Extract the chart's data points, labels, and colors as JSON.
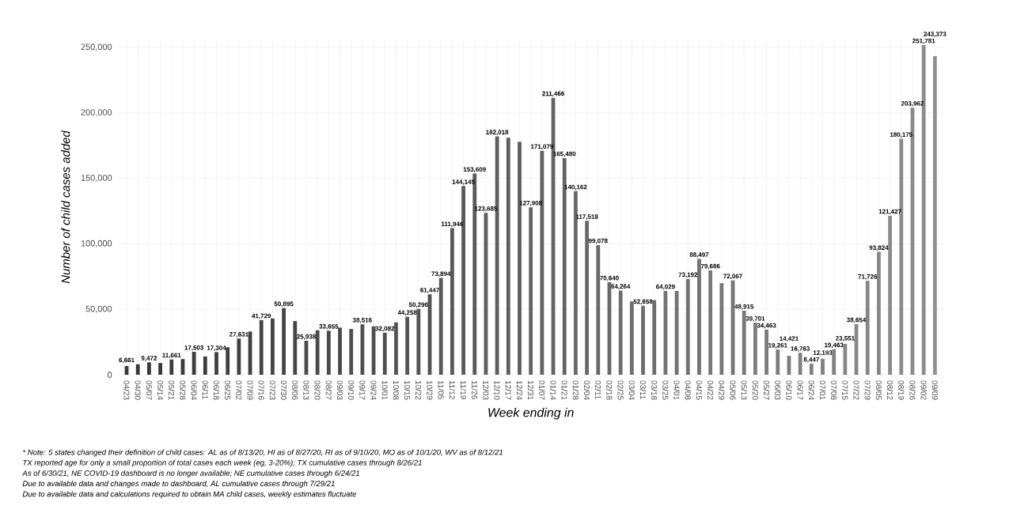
{
  "chart_data": {
    "type": "bar",
    "xlabel": "Week ending in",
    "ylabel": "Number of child cases added",
    "categories": [
      "04/23",
      "04/30",
      "05/07",
      "05/14",
      "05/21",
      "05/28",
      "06/04",
      "06/11",
      "06/18",
      "06/25",
      "07/02",
      "07/09",
      "07/16",
      "07/23",
      "07/30",
      "08/06",
      "08/13",
      "08/20",
      "08/27",
      "09/03",
      "09/10",
      "09/17",
      "09/24",
      "10/01",
      "10/08",
      "10/15",
      "10/22",
      "10/29",
      "11/05",
      "11/12",
      "11/19",
      "11/26",
      "12/03",
      "12/10",
      "12/17",
      "12/24",
      "12/31",
      "01/07",
      "01/14",
      "01/21",
      "01/28",
      "02/04",
      "02/11",
      "02/18",
      "02/25",
      "03/04",
      "03/11",
      "03/18",
      "03/25",
      "04/01",
      "04/08",
      "04/15",
      "04/22",
      "04/29",
      "05/06",
      "05/13",
      "05/20",
      "05/27",
      "06/03",
      "06/10",
      "06/17",
      "06/24",
      "07/01",
      "07/08",
      "07/15",
      "07/22",
      "07/29",
      "08/05",
      "08/12",
      "08/19",
      "08/26",
      "09/02",
      "09/09"
    ],
    "values": [
      6661,
      8000,
      9472,
      9000,
      11661,
      12000,
      17503,
      14000,
      17304,
      21000,
      27631,
      33000,
      41729,
      43000,
      50895,
      41000,
      25938,
      34000,
      33655,
      36000,
      35000,
      38516,
      37000,
      32082,
      40000,
      44258,
      50296,
      61447,
      73894,
      111946,
      144145,
      153609,
      123685,
      182018,
      181000,
      178000,
      127908,
      171079,
      211466,
      165480,
      140162,
      117518,
      99078,
      70640,
      64264,
      56000,
      52658,
      57000,
      64029,
      64000,
      73192,
      88497,
      79686,
      70000,
      72067,
      48915,
      39701,
      34463,
      19261,
      14421,
      16763,
      8447,
      12193,
      19463,
      23551,
      38654,
      71726,
      93824,
      121427,
      180175,
      203962,
      251781,
      243373
    ],
    "value_labels": [
      "6,661",
      null,
      "9,472",
      null,
      "11,661",
      null,
      "17,503",
      null,
      "17,304",
      null,
      "27,631",
      null,
      "41,729",
      null,
      "50,895",
      null,
      "25,938",
      null,
      "33,655",
      null,
      null,
      "38,516",
      null,
      "32,082",
      null,
      "44,258",
      "50,296",
      "61,447",
      "73,894",
      "111,946",
      "144,145",
      "153,609",
      "123,685",
      "182,018",
      null,
      null,
      "127,908",
      "171,079",
      "211,466",
      "165,480",
      "140,162",
      "117,518",
      "99,078",
      "70,640",
      "64,264",
      null,
      "52,658",
      null,
      "64,029",
      null,
      "73,192",
      "88,497",
      "79,686",
      null,
      "72,067",
      "48,915",
      "39,701",
      "34,463",
      "19,261",
      "14,421",
      "16,763",
      "8,447",
      "12,193",
      "19,463",
      "23,551",
      "38,654",
      "71,726",
      "93,824",
      "121,427",
      "180,175",
      "203,962",
      "251,781",
      "243,373"
    ],
    "colors": [
      "#383838",
      "#383838",
      "#383838",
      "#383838",
      "#3c3c3c",
      "#3c3c3c",
      "#3c3c3c",
      "#3c3c3c",
      "#404040",
      "#404040",
      "#404040",
      "#404040",
      "#454545",
      "#454545",
      "#454545",
      "#454545",
      "#4a4a4a",
      "#4a4a4a",
      "#4a4a4a",
      "#4a4a4a",
      "#4f4f4f",
      "#4f4f4f",
      "#4f4f4f",
      "#4f4f4f",
      "#545454",
      "#545454",
      "#545454",
      "#545454",
      "#595959",
      "#595959",
      "#595959",
      "#595959",
      "#5e5e5e",
      "#5e5e5e",
      "#5e5e5e",
      "#5e5e5e",
      "#636363",
      "#636363",
      "#636363",
      "#636363",
      "#686868",
      "#686868",
      "#686868",
      "#686868",
      "#6d6d6d",
      "#6d6d6d",
      "#6d6d6d",
      "#6d6d6d",
      "#727272",
      "#727272",
      "#727272",
      "#727272",
      "#777777",
      "#777777",
      "#777777",
      "#777777",
      "#7c7c7c",
      "#7c7c7c",
      "#7c7c7c",
      "#7c7c7c",
      "#818181",
      "#818181",
      "#818181",
      "#818181",
      "#868686",
      "#868686",
      "#868686",
      "#868686",
      "#8b8b8b",
      "#8b8b8b",
      "#8b8b8b",
      "#8b8b8b",
      "#909090"
    ],
    "ylim": [
      0,
      256000
    ],
    "yticks": [
      0,
      {
        "value": 50000,
        "label": "50,000"
      },
      {
        "value": 100000,
        "label": "100,000"
      },
      {
        "value": 150000,
        "label": "150,000"
      },
      {
        "value": 200000,
        "label": "200,000"
      },
      {
        "value": 250000,
        "label": "250,000"
      }
    ],
    "grid": true,
    "annotations": [
      "* Note: 5 states changed their definition of child cases: AL as of 8/13/20, HI as of 8/27/20, RI as of 9/10/20, MO as of 10/1/20, WV as of 8/12/21",
      "TX reported age for only a small proportion of total cases each week (eg, 3-20%); TX cumulative cases through 8/26/21",
      "As of 6/30/21, NE COVID-19 dashboard is no longer available; NE cumulative cases through 6/24/21",
      "Due to available data and changes made to dashboard, AL cumulative cases through 7/29/21",
      "Due to available data and calculations required to obtain MA child cases, weekly estimates fluctuate"
    ]
  }
}
